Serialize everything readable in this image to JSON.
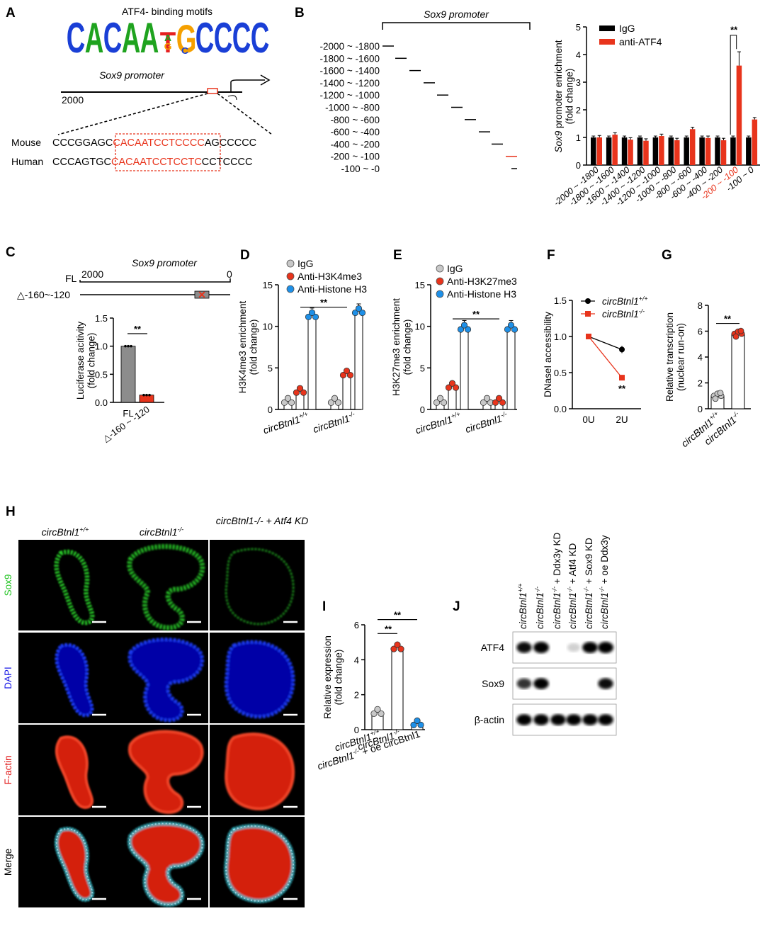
{
  "panels": {
    "A": "A",
    "B": "B",
    "C": "C",
    "D": "D",
    "E": "E",
    "F": "F",
    "G": "G",
    "H": "H",
    "I": "I",
    "J": "J"
  },
  "A": {
    "motif_title": "ATF4- binding motifs",
    "motif_letters": [
      "C",
      "A",
      "C",
      "A",
      "A",
      "T",
      "G",
      "C",
      "C",
      "C",
      "C"
    ],
    "promoter_label": "Sox9 promoter",
    "position_label": "2000",
    "mouse_label": "Mouse",
    "mouse_prefix": "CCCGGAGC",
    "mouse_motif": "CACAATCCTCCCC",
    "mouse_suffix": "AGCCCCC",
    "human_label": "Human",
    "human_prefix": "CCCAGTGC",
    "human_motif": "CACAATCCTCCTC",
    "human_suffix": "CCTCCCC"
  },
  "B": {
    "promoter_label": "Sox9 promoter",
    "fragments": [
      "-2000 ~ -1800",
      "-1800 ~ -1600",
      "-1600 ~ -1400",
      "-1400 ~ -1200",
      "-1200 ~ -1000",
      "-1000 ~ -800",
      "-800 ~ -600",
      "-600 ~ -400",
      "-400 ~ -200",
      "-200 ~ -100",
      "-100 ~ -0"
    ],
    "highlight_fragment": 9
  },
  "chart_data": [
    {
      "id": "B",
      "type": "bar",
      "ylabel": "Sox9 promoter enrichment (fold change)",
      "ylim": [
        0,
        5
      ],
      "yticks": [
        0,
        1,
        2,
        3,
        4,
        5
      ],
      "categories": [
        "-2000 ~ -1800",
        "-1800 ~ -1600",
        "-1600 ~ -1400",
        "-1400 ~ -1200",
        "-1200 ~ -1000",
        "-1000 ~ -800",
        "-800 ~ -600",
        "-600 ~ -400",
        "-400 ~ -200",
        "-200 ~ -100",
        "-100 ~ 0"
      ],
      "series": [
        {
          "name": "IgG",
          "color": "#000000",
          "values": [
            1,
            1,
            1,
            1,
            1,
            1,
            1,
            1,
            1,
            1,
            1
          ]
        },
        {
          "name": "anti-ATF4",
          "color": "#e8341c",
          "values": [
            1.0,
            1.1,
            0.92,
            0.88,
            1.05,
            0.9,
            1.3,
            0.98,
            0.9,
            3.6,
            1.65
          ]
        }
      ],
      "significance": "**"
    },
    {
      "id": "C",
      "type": "bar",
      "ylabel": "Luciferase acitivity (fold change)",
      "ylim": [
        0,
        1.5
      ],
      "yticks": [
        "0.0",
        "0.5",
        "1.0",
        "1.5"
      ],
      "categories": [
        "FL",
        "△-160 ~ -120"
      ],
      "values": [
        1.0,
        0.13
      ],
      "colors": [
        "#8c8c8c",
        "#e8341c"
      ],
      "significance": "**"
    },
    {
      "id": "D",
      "type": "bar",
      "ylabel": "H3K4me3 enrichment (fold change)",
      "ylim": [
        0,
        15
      ],
      "yticks": [
        0,
        5,
        10,
        15
      ],
      "groups": [
        "circBtnl1+/+",
        "circBtnl1-/-"
      ],
      "series": [
        {
          "name": "IgG",
          "color": "#c8c8c8",
          "values": [
            1.0,
            1.0
          ]
        },
        {
          "name": "Anti-H3K4me3",
          "color": "#e8341c",
          "values": [
            2.2,
            4.3
          ]
        },
        {
          "name": "Anti-Histone H3",
          "color": "#1e90e8",
          "values": [
            11.3,
            11.8
          ]
        }
      ],
      "significance": "**"
    },
    {
      "id": "E",
      "type": "bar",
      "ylabel": "H3K27me3 enrichment (fold change)",
      "ylim": [
        0,
        15
      ],
      "yticks": [
        0,
        5,
        10,
        15
      ],
      "groups": [
        "circBtnl1+/+",
        "circBtnl1-/-"
      ],
      "series": [
        {
          "name": "IgG",
          "color": "#c8c8c8",
          "values": [
            1.0,
            1.0
          ]
        },
        {
          "name": "Anti-H3K27me3",
          "color": "#e8341c",
          "values": [
            2.8,
            1.0
          ]
        },
        {
          "name": "Anti-Histone H3",
          "color": "#1e90e8",
          "values": [
            9.8,
            9.8
          ]
        }
      ],
      "significance": "**"
    },
    {
      "id": "F",
      "type": "line",
      "ylabel": "DNaseI accessibility",
      "ylim": [
        0,
        1.5
      ],
      "yticks": [
        "0.0",
        "0.5",
        "1.0",
        "1.5"
      ],
      "categories": [
        "0U",
        "2U"
      ],
      "series": [
        {
          "name": "circBtnl1+/+",
          "color": "#000000",
          "values": [
            1.0,
            0.82
          ]
        },
        {
          "name": "circBtnl1-/-",
          "color": "#e8341c",
          "values": [
            1.0,
            0.43
          ]
        }
      ],
      "significance": "**"
    },
    {
      "id": "G",
      "type": "bar",
      "ylabel": "Relative transcription (nuclear run-on)",
      "ylim": [
        0,
        8
      ],
      "yticks": [
        0,
        2,
        4,
        6,
        8
      ],
      "categories": [
        "circBtnl1+/+",
        "circBtnl1-/-"
      ],
      "values": [
        1.0,
        5.8
      ],
      "colors": [
        "#c8c8c8",
        "#e8341c"
      ],
      "significance": "**"
    },
    {
      "id": "I",
      "type": "bar",
      "ylabel": "Relative expression (fold change)",
      "ylim": [
        0,
        6
      ],
      "yticks": [
        0,
        2,
        4,
        6
      ],
      "categories": [
        "circBtnl1+/+",
        "circBtnl1-/-",
        "circBtnl1-/- + oe circBtnl1"
      ],
      "values": [
        1.0,
        4.7,
        0.35
      ],
      "colors": [
        "#c8c8c8",
        "#e8341c",
        "#1e90e8"
      ],
      "significance": [
        "**",
        "**"
      ]
    }
  ],
  "H": {
    "columns": [
      "circBtnl1+/+",
      "circBtnl1-/-",
      "circBtnl1-/- + Atf4 KD"
    ],
    "rows": [
      "Sox9",
      "DAPI",
      "F-actin",
      "Merge"
    ],
    "row_colors": [
      "#22c322",
      "#1a1ae6",
      "#e01818",
      "#000000"
    ]
  },
  "J": {
    "lanes": [
      "circBtnl1+/+",
      "circBtnl1-/-",
      "circBtnl1-/- + Ddx3y KD",
      "circBtnl1-/- + Atf4 KD",
      "circBtnl1-/- + Sox9 KD",
      "circBtnl1-/- + oe Ddx3y"
    ],
    "blots": [
      {
        "label": "ATF4",
        "intensity": [
          0.85,
          1.0,
          0.0,
          0.08,
          0.95,
          1.0
        ]
      },
      {
        "label": "Sox9",
        "intensity": [
          0.7,
          0.9,
          0.0,
          0.0,
          0.0,
          0.85
        ]
      },
      {
        "label": "β-actin",
        "intensity": [
          0.9,
          0.9,
          0.9,
          0.9,
          0.9,
          0.9
        ]
      }
    ]
  }
}
